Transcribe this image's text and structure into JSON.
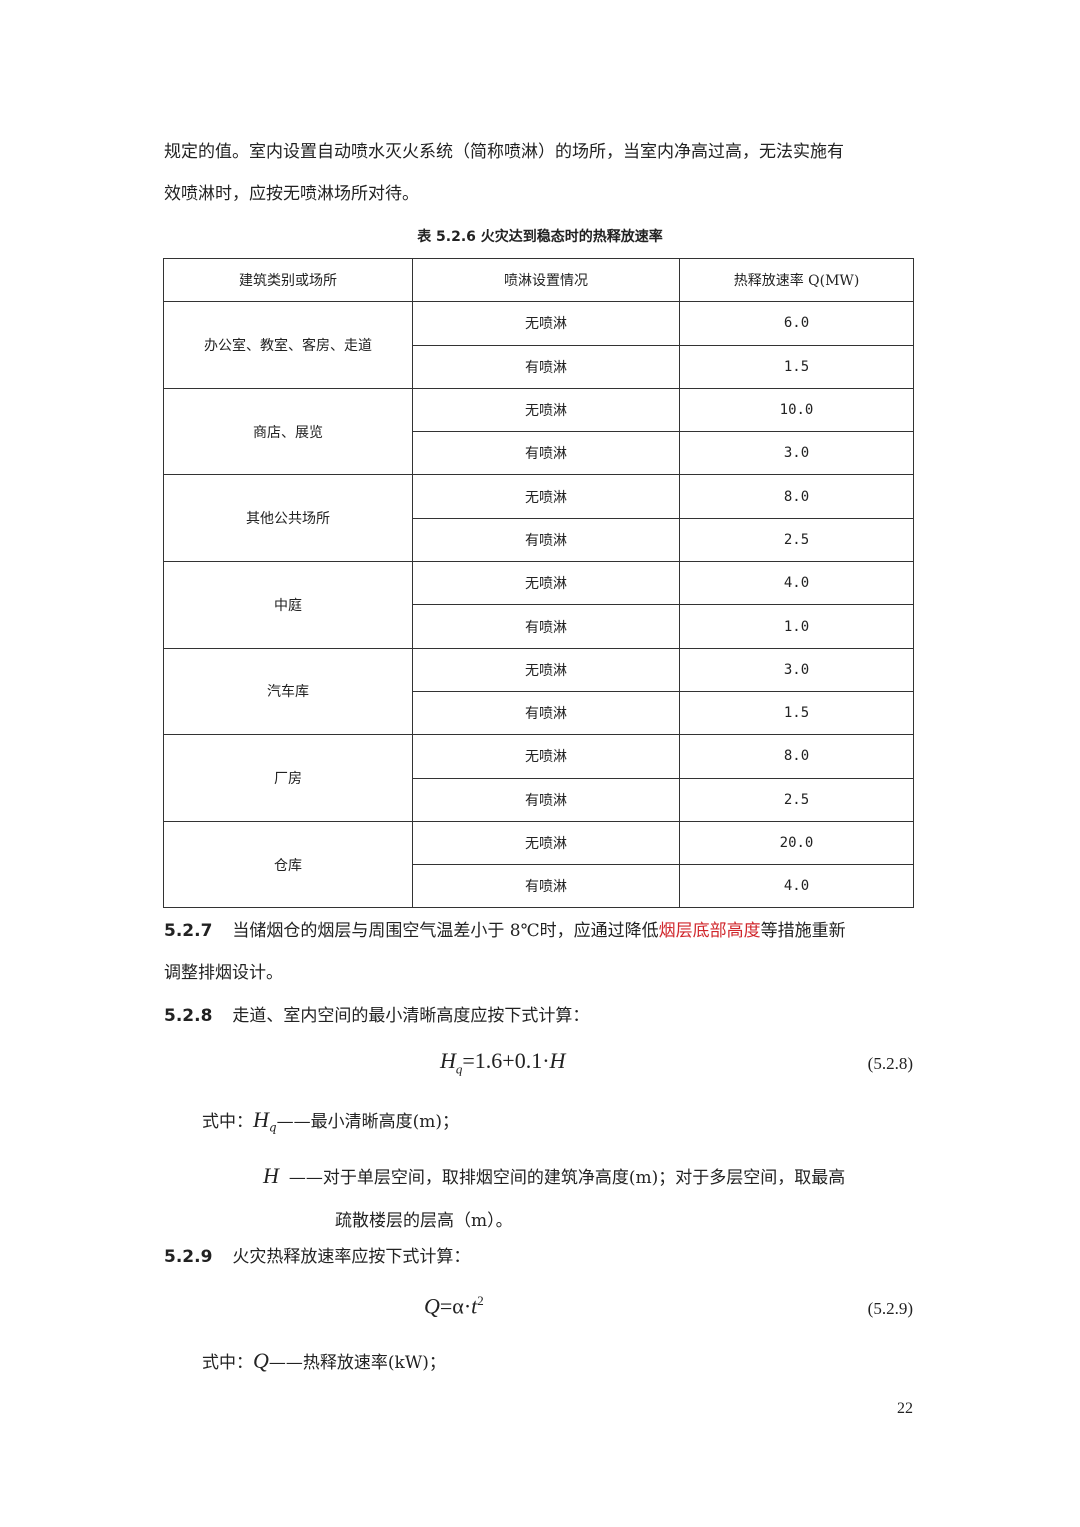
{
  "intro": {
    "line1": "规定的值。室内设置自动喷水灭火系统（简称喷淋）的场所，当室内净高过高，无法实施有",
    "line2": "效喷淋时，应按无喷淋场所对待。"
  },
  "table": {
    "caption": "表 5.2.6 火灾达到稳态时的热释放速率",
    "headers": [
      "建筑类别或场所",
      "喷淋设置情况",
      "热释放速率 Q(MW)"
    ],
    "groups": [
      {
        "name": "办公室、教室、客房、走道",
        "rows": [
          [
            "无喷淋",
            "6.0"
          ],
          [
            "有喷淋",
            "1.5"
          ]
        ]
      },
      {
        "name": "商店、展览",
        "rows": [
          [
            "无喷淋",
            "10.0"
          ],
          [
            "有喷淋",
            "3.0"
          ]
        ]
      },
      {
        "name": "其他公共场所",
        "rows": [
          [
            "无喷淋",
            "8.0"
          ],
          [
            "有喷淋",
            "2.5"
          ]
        ]
      },
      {
        "name": "中庭",
        "rows": [
          [
            "无喷淋",
            "4.0"
          ],
          [
            "有喷淋",
            "1.0"
          ]
        ]
      },
      {
        "name": "汽车库",
        "rows": [
          [
            "无喷淋",
            "3.0"
          ],
          [
            "有喷淋",
            "1.5"
          ]
        ]
      },
      {
        "name": "厂房",
        "rows": [
          [
            "无喷淋",
            "8.0"
          ],
          [
            "有喷淋",
            "2.5"
          ]
        ]
      },
      {
        "name": "仓库",
        "rows": [
          [
            "无喷淋",
            "20.0"
          ],
          [
            "有喷淋",
            "4.0"
          ]
        ]
      }
    ]
  },
  "s527": {
    "num": "5.2.7",
    "pre": "当储烟仓的烟层与周围空气温差小于 8℃时，应通过降低",
    "red": "烟层底部高度",
    "post": "等措施重新",
    "line2": "调整排烟设计。",
    "highlight_color": "#d0262b"
  },
  "s528": {
    "num": "5.2.8",
    "text": "走道、室内空间的最小清晰高度应按下式计算：",
    "formula_lhs": "H",
    "formula_sub": "q",
    "formula_rhs": "=1.6+0.1·",
    "formula_var": "H",
    "eqno": "(5.2.8)",
    "where": "式中：",
    "hq_desc": "——最小清晰高度(m)；",
    "h_var": "H",
    "h_desc": "——对于单层空间，取排烟空间的建筑净高度(m)；对于多层空间，取最高",
    "h_desc2": "疏散楼层的层高（m）。"
  },
  "s529": {
    "num": "5.2.9",
    "text": "火灾热释放速率应按下式计算：",
    "formula_lhs": "Q",
    "formula_mid": "=α·",
    "formula_t": "t",
    "formula_sup": "2",
    "eqno": "(5.2.9)",
    "where": "式中：",
    "q_var": "Q",
    "q_desc": "——热释放速率(kW)；"
  },
  "page_number": "22"
}
